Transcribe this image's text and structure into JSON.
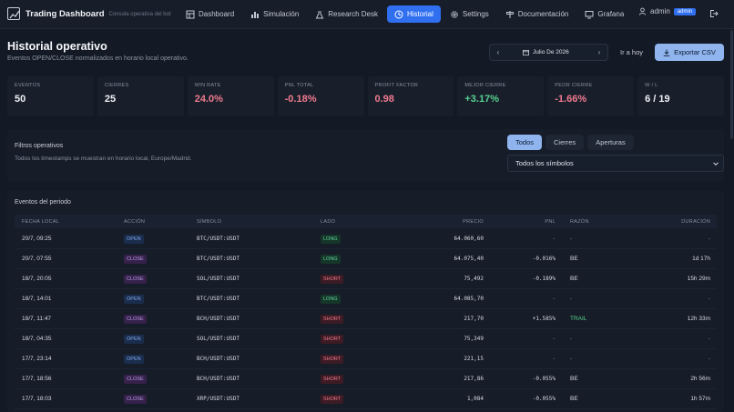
{
  "app": {
    "name": "Trading Dashboard",
    "subtitle": "Consola operativa del bot"
  },
  "nav": {
    "items": [
      {
        "label": "Dashboard",
        "icon": "dashboard-icon"
      },
      {
        "label": "Simulación",
        "icon": "bar-chart-icon"
      },
      {
        "label": "Research Desk",
        "icon": "flask-icon"
      },
      {
        "label": "Historial",
        "icon": "clock-icon",
        "active": true
      },
      {
        "label": "Settings",
        "icon": "gear-icon"
      },
      {
        "label": "Documentación",
        "icon": "signpost-icon"
      },
      {
        "label": "Grafana",
        "icon": "monitor-icon"
      }
    ],
    "user": "admin",
    "role_badge": "admin"
  },
  "header": {
    "title": "Historial operativo",
    "subtitle": "Eventos OPEN/CLOSE normalizados en horario local operativo.",
    "month": "Julio De 2026",
    "today_label": "Ir a hoy",
    "export_label": "Exportar CSV"
  },
  "kpis": [
    {
      "label": "EVENTOS",
      "value": "50",
      "tone": "neutral"
    },
    {
      "label": "CIERRES",
      "value": "25",
      "tone": "neutral"
    },
    {
      "label": "WIN RATE",
      "value": "24.0%",
      "tone": "neg"
    },
    {
      "label": "PNL TOTAL",
      "value": "-0.18%",
      "tone": "neg"
    },
    {
      "label": "PROFIT FACTOR",
      "value": "0.98",
      "tone": "neg"
    },
    {
      "label": "MEJOR CIERRE",
      "value": "+3.17%",
      "tone": "pos"
    },
    {
      "label": "PEOR CIERRE",
      "value": "-1.66%",
      "tone": "neg"
    },
    {
      "label": "W / L",
      "value": "6 / 19",
      "tone": "neutral"
    }
  ],
  "filters": {
    "title": "Filtros operativos",
    "note": "Todos los timestamps se muestran en horario local, Europe/Madrid.",
    "segments": [
      "Todos",
      "Cierres",
      "Aperturas"
    ],
    "active_segment": "Todos",
    "symbol_select": "Todos los símbolos"
  },
  "events": {
    "title": "Eventos del periodo",
    "columns": [
      "FECHA LOCAL",
      "ACCIÓN",
      "SÍMBOLO",
      "LADO",
      "PRECIO",
      "PNL",
      "RAZÓN",
      "DURACIÓN"
    ],
    "rows": [
      {
        "date": "20/7, 09:25",
        "action": "OPEN",
        "symbol": "BTC/USDT:USDT",
        "side": "LONG",
        "price": "64.060,60",
        "pnl": "-",
        "reason": "-",
        "duration": "-"
      },
      {
        "date": "20/7, 07:55",
        "action": "CLOSE",
        "symbol": "BTC/USDT:USDT",
        "side": "LONG",
        "price": "64.075,40",
        "pnl": "-0.016%",
        "reason": "BE",
        "duration": "1d 17h"
      },
      {
        "date": "18/7, 20:05",
        "action": "CLOSE",
        "symbol": "SOL/USDT:USDT",
        "side": "SHORT",
        "price": "75,492",
        "pnl": "-0.189%",
        "reason": "BE",
        "duration": "15h 29m"
      },
      {
        "date": "18/7, 14:01",
        "action": "OPEN",
        "symbol": "BTC/USDT:USDT",
        "side": "LONG",
        "price": "64.085,70",
        "pnl": "-",
        "reason": "-",
        "duration": "-"
      },
      {
        "date": "18/7, 11:47",
        "action": "CLOSE",
        "symbol": "BCH/USDT:USDT",
        "side": "SHORT",
        "price": "217,70",
        "pnl": "+1.585%",
        "reason": "TRAIL",
        "duration": "12h 33m"
      },
      {
        "date": "18/7, 04:35",
        "action": "OPEN",
        "symbol": "SOL/USDT:USDT",
        "side": "SHORT",
        "price": "75,349",
        "pnl": "-",
        "reason": "-",
        "duration": "-"
      },
      {
        "date": "17/7, 23:14",
        "action": "OPEN",
        "symbol": "BCH/USDT:USDT",
        "side": "SHORT",
        "price": "221,15",
        "pnl": "-",
        "reason": "-",
        "duration": "-"
      },
      {
        "date": "17/7, 18:56",
        "action": "CLOSE",
        "symbol": "BCH/USDT:USDT",
        "side": "SHORT",
        "price": "217,86",
        "pnl": "-0.055%",
        "reason": "BE",
        "duration": "2h 56m"
      },
      {
        "date": "17/7, 18:03",
        "action": "CLOSE",
        "symbol": "XRP/USDT:USDT",
        "side": "SHORT",
        "price": "1,084",
        "pnl": "-0.055%",
        "reason": "BE",
        "duration": "1h 57m"
      }
    ]
  },
  "colors": {
    "accent": "#2f6ff0",
    "positive": "#58d18f",
    "negative": "#f07a8e",
    "background": "#141a25"
  }
}
